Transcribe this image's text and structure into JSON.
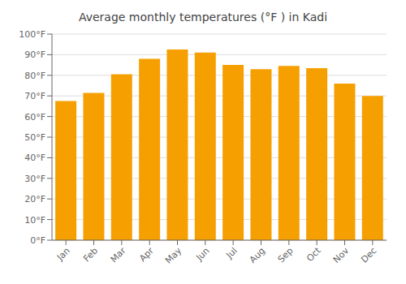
{
  "chart_data": {
    "type": "bar",
    "title": "Average monthly temperatures (°F ) in Kadi",
    "categories": [
      "Jan",
      "Feb",
      "Mar",
      "Apr",
      "May",
      "Jun",
      "Jul",
      "Aug",
      "Sep",
      "Oct",
      "Nov",
      "Dec"
    ],
    "values": [
      67.5,
      71.5,
      80.5,
      88.0,
      92.5,
      91.0,
      85.0,
      83.0,
      84.5,
      83.5,
      76.0,
      70.0
    ],
    "color": "#F5A000",
    "ylim": [
      0,
      100
    ],
    "yticks": [
      {
        "value": 0,
        "label": "0°F"
      },
      {
        "value": 10,
        "label": "10°F"
      },
      {
        "value": 20,
        "label": "20°F"
      },
      {
        "value": 30,
        "label": "30°F"
      },
      {
        "value": 40,
        "label": "40°F"
      },
      {
        "value": 50,
        "label": "50°F"
      },
      {
        "value": 60,
        "label": "60°F"
      },
      {
        "value": 70,
        "label": "70°F"
      },
      {
        "value": 80,
        "label": "80°F"
      },
      {
        "value": 90,
        "label": "90°F"
      },
      {
        "value": 100,
        "label": "100°F"
      }
    ],
    "grid": true
  }
}
